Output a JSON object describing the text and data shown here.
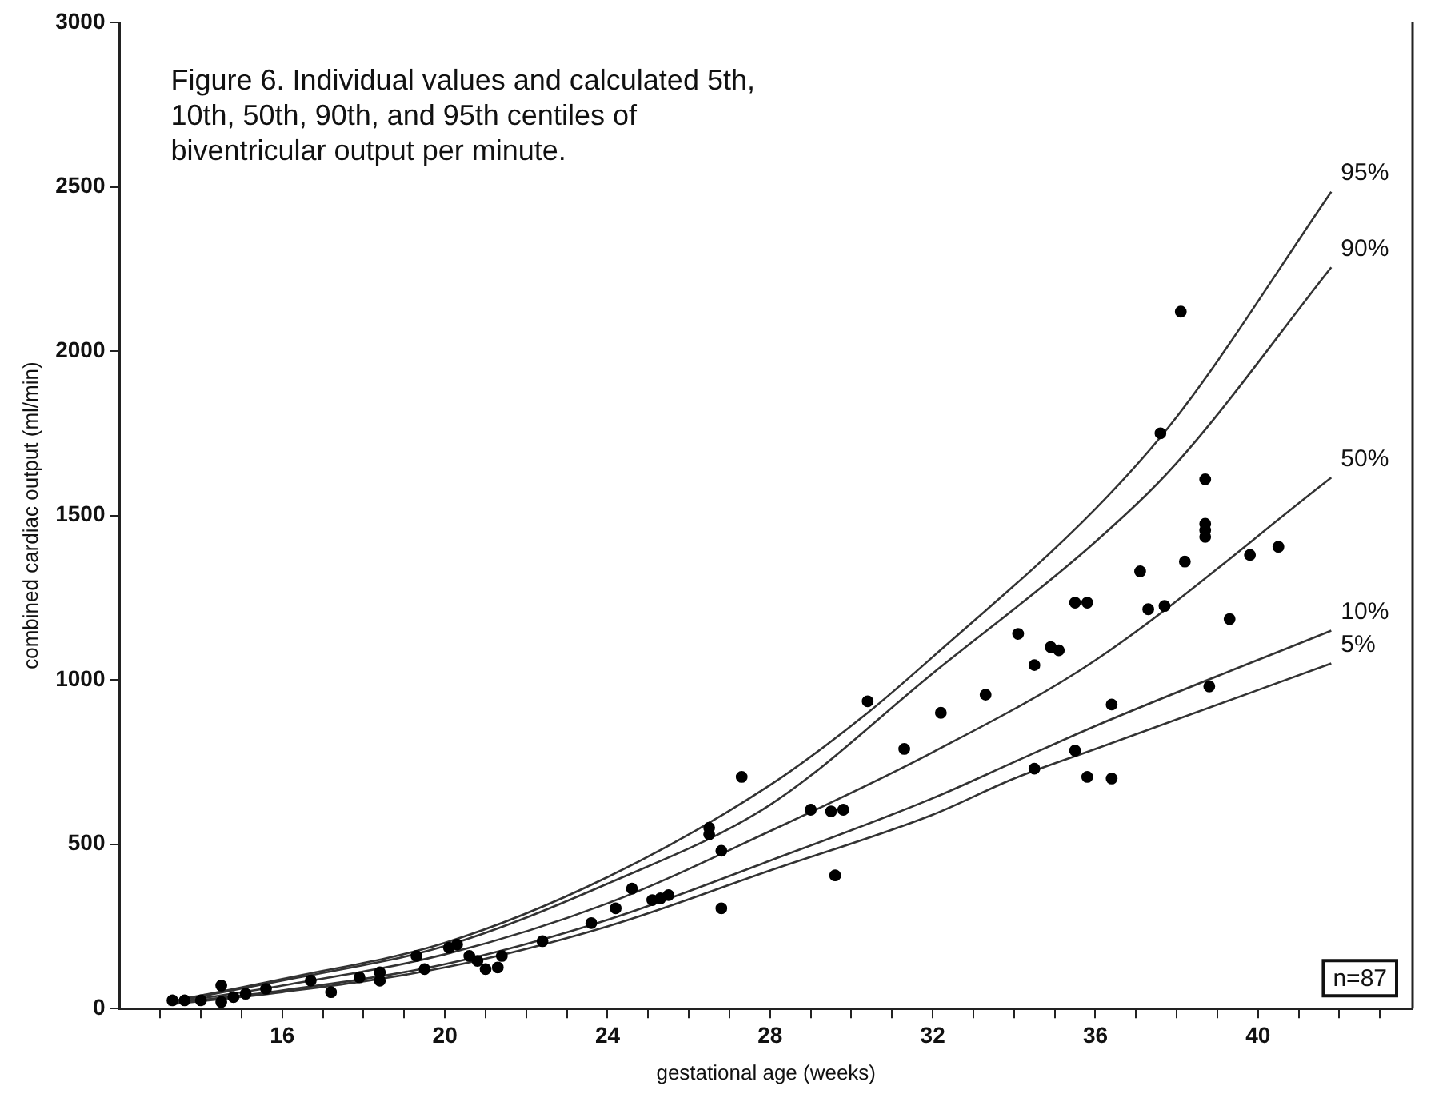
{
  "chart_data": {
    "type": "scatter",
    "title": "Figure 6. Individual values and calculated 5th, 10th, 50th, 90th, and 95th centiles of biventricular output per minute.",
    "xlabel": "gestational age (weeks)",
    "ylabel": "combined cardiac output (ml/min)",
    "annotations": [
      "n=87"
    ],
    "xlim": [
      12,
      43.8
    ],
    "ylim": [
      0,
      3000
    ],
    "xticks": [
      {
        "value": 13,
        "label": null
      },
      {
        "value": 14,
        "label": null
      },
      {
        "value": 15,
        "label": null
      },
      16,
      {
        "value": 17,
        "label": null
      },
      {
        "value": 18,
        "label": null
      },
      {
        "value": 19,
        "label": null
      },
      20,
      {
        "value": 21,
        "label": null
      },
      {
        "value": 22,
        "label": null
      },
      {
        "value": 23,
        "label": null
      },
      24,
      {
        "value": 25,
        "label": null
      },
      {
        "value": 26,
        "label": null
      },
      {
        "value": 27,
        "label": null
      },
      28,
      {
        "value": 29,
        "label": null
      },
      {
        "value": 30,
        "label": null
      },
      {
        "value": 31,
        "label": null
      },
      32,
      {
        "value": 33,
        "label": null
      },
      {
        "value": 34,
        "label": null
      },
      {
        "value": 35,
        "label": null
      },
      36,
      {
        "value": 37,
        "label": null
      },
      {
        "value": 38,
        "label": null
      },
      {
        "value": 39,
        "label": null
      },
      40,
      {
        "value": 41,
        "label": null
      },
      {
        "value": 42,
        "label": null
      },
      {
        "value": 43,
        "label": null
      }
    ],
    "yticks": [
      0,
      500,
      1000,
      1500,
      2000,
      2500,
      3000
    ],
    "grid": false,
    "legend": false,
    "series": [
      {
        "type": "scatter",
        "color": "#000000",
        "marker": "circle",
        "x": [
          38.1,
          37.6,
          38.7,
          38.7,
          38.7,
          38.7,
          38.2,
          37.1,
          39.8,
          40.5,
          35.5,
          35.8,
          37.3,
          37.7,
          34.1,
          34.9,
          35.1,
          34.5,
          39.3,
          36.4,
          38.8,
          35.5,
          34.5,
          35.8,
          36.4,
          33.3,
          32.2,
          30.4,
          31.3,
          27.3,
          29.0,
          29.5,
          29.8,
          29.6,
          26.5,
          26.5,
          26.8,
          26.8,
          24.6,
          24.2,
          25.1,
          25.3,
          25.5,
          23.6,
          22.4,
          21.4,
          21.3,
          20.1,
          20.3,
          20.6,
          20.8,
          21.0,
          19.3,
          19.5,
          18.4,
          18.4,
          17.9,
          17.2,
          16.7,
          15.6,
          15.1,
          14.5,
          14.5,
          14.0,
          13.6,
          13.3,
          14.8
        ],
        "values": [
          2120,
          1750,
          1610,
          1475,
          1455,
          1435,
          1360,
          1330,
          1380,
          1405,
          1235,
          1235,
          1215,
          1225,
          1140,
          1100,
          1090,
          1045,
          1185,
          925,
          980,
          785,
          730,
          705,
          700,
          955,
          900,
          935,
          790,
          705,
          605,
          600,
          605,
          405,
          550,
          530,
          480,
          305,
          365,
          305,
          330,
          335,
          345,
          260,
          205,
          160,
          125,
          185,
          195,
          160,
          145,
          120,
          160,
          120,
          110,
          85,
          95,
          50,
          85,
          60,
          45,
          70,
          20,
          25,
          25,
          25,
          35
        ]
      },
      {
        "type": "line",
        "name": "95%",
        "color": "#333333",
        "marker": "none",
        "x": [
          13.2,
          16,
          20,
          24,
          28,
          30.4,
          32,
          36,
          38,
          41.8
        ],
        "values": [
          20,
          90,
          200,
          400,
          680,
          900,
          1070,
          1520,
          1800,
          2485
        ]
      },
      {
        "type": "line",
        "name": "90%",
        "color": "#333333",
        "marker": "none",
        "x": [
          13.2,
          16,
          20,
          24,
          28,
          32,
          36,
          38,
          41.8
        ],
        "values": [
          18,
          85,
          190,
          380,
          620,
          1020,
          1420,
          1660,
          2255
        ]
      },
      {
        "type": "line",
        "name": "50%",
        "color": "#333333",
        "marker": "none",
        "x": [
          13.2,
          16,
          20,
          24,
          28,
          32,
          36,
          41.8
        ],
        "values": [
          16,
          70,
          165,
          320,
          540,
          780,
          1060,
          1615
        ]
      },
      {
        "type": "line",
        "name": "10%",
        "color": "#333333",
        "marker": "none",
        "x": [
          13.2,
          16,
          20,
          24,
          28,
          32,
          34,
          36,
          41.8
        ],
        "values": [
          15,
          55,
          135,
          270,
          450,
          640,
          750,
          860,
          1150
        ]
      },
      {
        "type": "line",
        "name": "5%",
        "color": "#333333",
        "marker": "none",
        "x": [
          13.2,
          16,
          20,
          24,
          28,
          32,
          34,
          36,
          41.8
        ],
        "values": [
          12,
          50,
          125,
          250,
          420,
          590,
          700,
          790,
          1050
        ]
      }
    ]
  }
}
